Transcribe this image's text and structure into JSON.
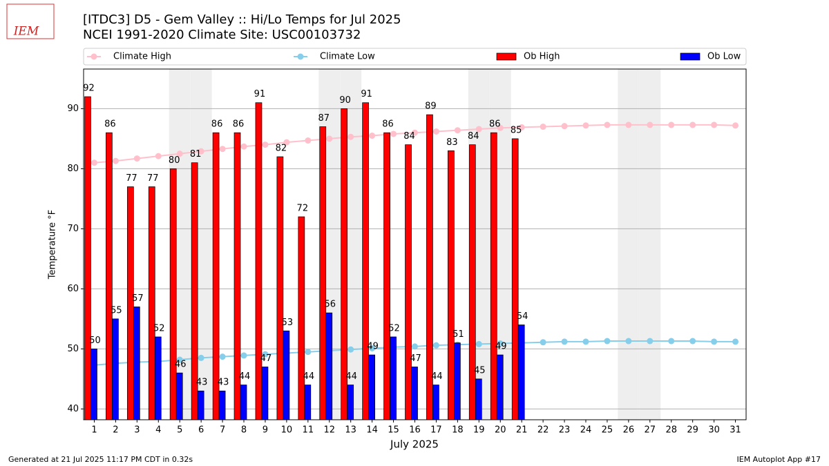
{
  "logo": "IEM",
  "footer_left": "Generated at 21 Jul 2025 11:17 PM CDT in 0.32s",
  "footer_right": "IEM Autoplot App #17",
  "chart_data": {
    "type": "bar",
    "title": "[ITDC3] D5 - Gem Valley  :: Hi/Lo Temps for Jul 2025",
    "subtitle": "NCEI 1991-2020 Climate Site: USC00103732",
    "xlabel": "July 2025",
    "ylabel": "Temperature °F",
    "x": [
      1,
      2,
      3,
      4,
      5,
      6,
      7,
      8,
      9,
      10,
      11,
      12,
      13,
      14,
      15,
      16,
      17,
      18,
      19,
      20,
      21,
      22,
      23,
      24,
      25,
      26,
      27,
      28,
      29,
      30,
      31
    ],
    "xlim": [
      0.5,
      31.5
    ],
    "xticks": [
      1,
      2,
      3,
      4,
      5,
      6,
      7,
      8,
      9,
      10,
      11,
      12,
      13,
      14,
      15,
      16,
      17,
      18,
      19,
      20,
      21,
      22,
      23,
      24,
      25,
      26,
      27,
      28,
      29,
      30,
      31
    ],
    "ylim": [
      38.2,
      96.6
    ],
    "yticks": [
      40,
      50,
      60,
      70,
      80,
      90
    ],
    "grid": true,
    "shaded_days": [
      5,
      6,
      12,
      13,
      19,
      20,
      26,
      27
    ],
    "series": [
      {
        "name": "Climate High",
        "type": "line",
        "color": "#ffc0cb",
        "values": [
          81.0,
          81.3,
          81.7,
          82.1,
          82.5,
          82.9,
          83.3,
          83.7,
          84.0,
          84.4,
          84.7,
          85.0,
          85.3,
          85.5,
          85.8,
          86.0,
          86.2,
          86.4,
          86.6,
          86.8,
          86.9,
          87.0,
          87.1,
          87.2,
          87.3,
          87.3,
          87.3,
          87.3,
          87.3,
          87.3,
          87.2
        ]
      },
      {
        "name": "Climate Low",
        "type": "line",
        "color": "#87ceeb",
        "values": [
          47.3,
          47.6,
          47.8,
          47.9,
          48.2,
          48.5,
          48.7,
          48.9,
          49.1,
          49.3,
          49.5,
          49.7,
          49.9,
          50.1,
          50.3,
          50.4,
          50.6,
          50.7,
          50.8,
          50.9,
          51.0,
          51.1,
          51.2,
          51.2,
          51.3,
          51.3,
          51.3,
          51.3,
          51.3,
          51.2,
          51.2
        ]
      },
      {
        "name": "Ob High",
        "type": "bar",
        "color": "#ff0000",
        "values": [
          92,
          86,
          77,
          77,
          80,
          81,
          86,
          86,
          91,
          82,
          72,
          87,
          90,
          91,
          86,
          84,
          89,
          83,
          84,
          86,
          85,
          null,
          null,
          null,
          null,
          null,
          null,
          null,
          null,
          null,
          null
        ]
      },
      {
        "name": "Ob Low",
        "type": "bar",
        "color": "#0000ff",
        "values": [
          50,
          55,
          57,
          52,
          46,
          43,
          43,
          44,
          47,
          53,
          44,
          56,
          44,
          49,
          52,
          47,
          44,
          51,
          45,
          49,
          54,
          null,
          null,
          null,
          null,
          null,
          null,
          null,
          null,
          null,
          null
        ]
      }
    ]
  }
}
